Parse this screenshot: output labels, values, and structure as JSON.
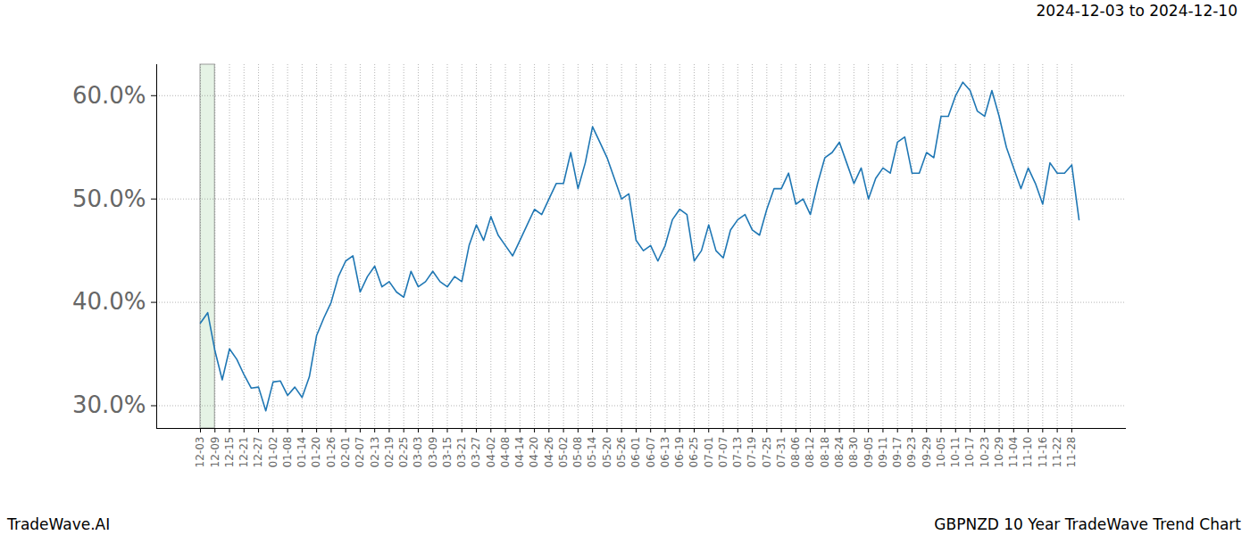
{
  "chart_data": {
    "type": "line",
    "title": "GBPNZD 10 Year TradeWave Trend Chart",
    "subtitle": "2024-12-03 to 2024-12-10",
    "source": "TradeWave.AI",
    "categories": [
      "12-03",
      null,
      "12-09",
      null,
      "12-15",
      null,
      "12-21",
      null,
      "12-27",
      null,
      "01-02",
      null,
      "01-08",
      null,
      "01-14",
      null,
      "01-20",
      null,
      "01-26",
      null,
      "02-01",
      null,
      "02-07",
      null,
      "02-13",
      null,
      "02-19",
      null,
      "02-25",
      null,
      "03-03",
      null,
      "03-09",
      null,
      "03-15",
      null,
      "03-21",
      null,
      "03-27",
      null,
      "04-02",
      null,
      "04-08",
      null,
      "04-14",
      null,
      "04-20",
      null,
      "04-26",
      null,
      "05-02",
      null,
      "05-08",
      null,
      "05-14",
      null,
      "05-20",
      null,
      "05-26",
      null,
      "06-01",
      null,
      "06-07",
      null,
      "06-13",
      null,
      "06-19",
      null,
      "06-25",
      null,
      "07-01",
      null,
      "07-07",
      null,
      "07-13",
      null,
      "07-19",
      null,
      "07-25",
      null,
      "07-31",
      null,
      "08-06",
      null,
      "08-12",
      null,
      "08-18",
      null,
      "08-24",
      null,
      "08-30",
      null,
      "09-05",
      null,
      "09-11",
      null,
      "09-17",
      null,
      "09-23",
      null,
      "09-29",
      null,
      "10-05",
      null,
      "10-11",
      null,
      "10-17",
      null,
      "10-23",
      null,
      "10-29",
      null,
      "11-04",
      null,
      "11-10",
      null,
      "11-16",
      null,
      "11-22",
      null,
      "11-28",
      null
    ],
    "values": [
      38.0,
      39.0,
      35.3,
      32.5,
      35.5,
      34.5,
      33.0,
      31.7,
      31.8,
      29.5,
      32.3,
      32.4,
      31.0,
      31.8,
      30.8,
      32.8,
      36.8,
      38.5,
      40.0,
      42.5,
      44.0,
      44.5,
      41.0,
      42.5,
      43.5,
      41.5,
      42.0,
      41.0,
      40.5,
      43.0,
      41.5,
      42.0,
      43.0,
      42.0,
      41.5,
      42.5,
      42.0,
      45.5,
      47.5,
      46.0,
      48.3,
      46.5,
      45.5,
      44.5,
      46.0,
      47.5,
      49.0,
      48.5,
      50.0,
      51.5,
      51.5,
      54.5,
      51.0,
      53.5,
      57.0,
      55.5,
      54.0,
      52.0,
      50.0,
      50.5,
      46.0,
      45.0,
      45.5,
      44.0,
      45.5,
      48.0,
      49.0,
      48.5,
      44.0,
      45.0,
      47.5,
      45.0,
      44.3,
      47.0,
      48.0,
      48.5,
      47.0,
      46.5,
      49.0,
      51.0,
      51.0,
      52.5,
      49.5,
      50.0,
      48.5,
      51.5,
      54.0,
      54.5,
      55.5,
      53.5,
      51.5,
      53.0,
      50.0,
      52.0,
      53.0,
      52.5,
      55.5,
      56.0,
      52.5,
      52.5,
      54.5,
      54.0,
      58.0,
      58.0,
      60.0,
      61.3,
      60.5,
      58.5,
      58.0,
      60.5,
      58.0,
      55.0,
      53.0,
      51.0,
      53.0,
      51.5,
      49.5,
      53.5,
      52.5,
      52.5,
      53.3,
      48.0
    ],
    "color": "#1f77b4",
    "highlight": {
      "start": "12-03",
      "end": "12-09"
    },
    "ylim": [
      27.8,
      63.0
    ],
    "yticks": [
      {
        "value": 30,
        "label": "30.0%"
      },
      {
        "value": 40,
        "label": "40.0%"
      },
      {
        "value": 50,
        "label": "50.0%"
      },
      {
        "value": 60,
        "label": "60.0%"
      }
    ],
    "grid": true
  }
}
